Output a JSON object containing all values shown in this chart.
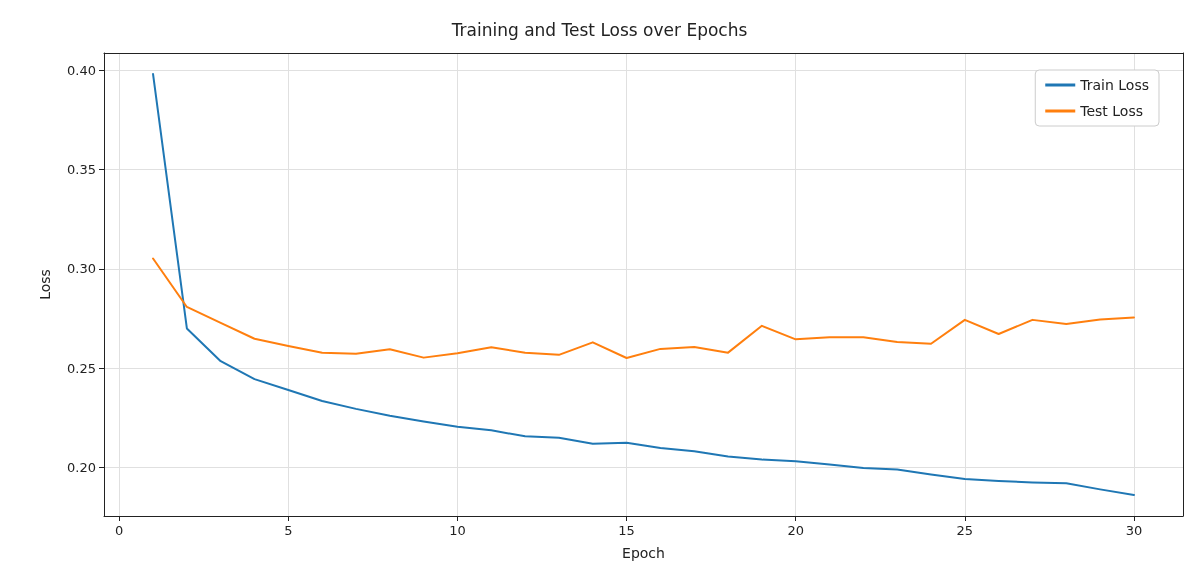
{
  "chart_data": {
    "type": "line",
    "title": "Training and Test Loss over Epochs",
    "xlabel": "Epoch",
    "ylabel": "Loss",
    "x": [
      1,
      2,
      3,
      4,
      5,
      6,
      7,
      8,
      9,
      10,
      11,
      12,
      13,
      14,
      15,
      16,
      17,
      18,
      19,
      20,
      21,
      22,
      23,
      24,
      25,
      26,
      27,
      28,
      29,
      30
    ],
    "series": [
      {
        "name": "Train Loss",
        "color": "#1f77b4",
        "values": [
          0.398,
          0.27,
          0.2535,
          0.2445,
          0.239,
          0.2335,
          0.2295,
          0.226,
          0.2232,
          0.2205,
          0.2187,
          0.2157,
          0.215,
          0.212,
          0.2125,
          0.2098,
          0.2082,
          0.2055,
          0.204,
          0.2031,
          0.2015,
          0.1998,
          0.199,
          0.1965,
          0.1942,
          0.1932,
          0.1925,
          0.1921,
          0.189,
          0.1862
        ]
      },
      {
        "name": "Test Loss",
        "color": "#ff7f0e",
        "values": [
          0.3052,
          0.2808,
          0.2728,
          0.2648,
          0.2612,
          0.2578,
          0.2573,
          0.2595,
          0.2553,
          0.2575,
          0.2605,
          0.2578,
          0.2567,
          0.263,
          0.2551,
          0.2597,
          0.2607,
          0.2578,
          0.2713,
          0.2645,
          0.2655,
          0.2655,
          0.2632,
          0.2623,
          0.2743,
          0.2672,
          0.2743,
          0.2722,
          0.2745,
          0.2755
        ]
      }
    ],
    "xlim": [
      -0.45,
      31.45
    ],
    "xticks": [
      0,
      5,
      10,
      15,
      20,
      25,
      30
    ],
    "ylim": [
      0.1756,
      0.4086
    ],
    "yticks": [
      {
        "value": 0.2,
        "label": "0.20"
      },
      {
        "value": 0.25,
        "label": "0.25"
      },
      {
        "value": 0.3,
        "label": "0.30"
      },
      {
        "value": 0.35,
        "label": "0.35"
      },
      {
        "value": 0.4,
        "label": "0.40"
      }
    ],
    "grid": true,
    "legend": "top right",
    "marker": "none",
    "line_style": "solid"
  }
}
